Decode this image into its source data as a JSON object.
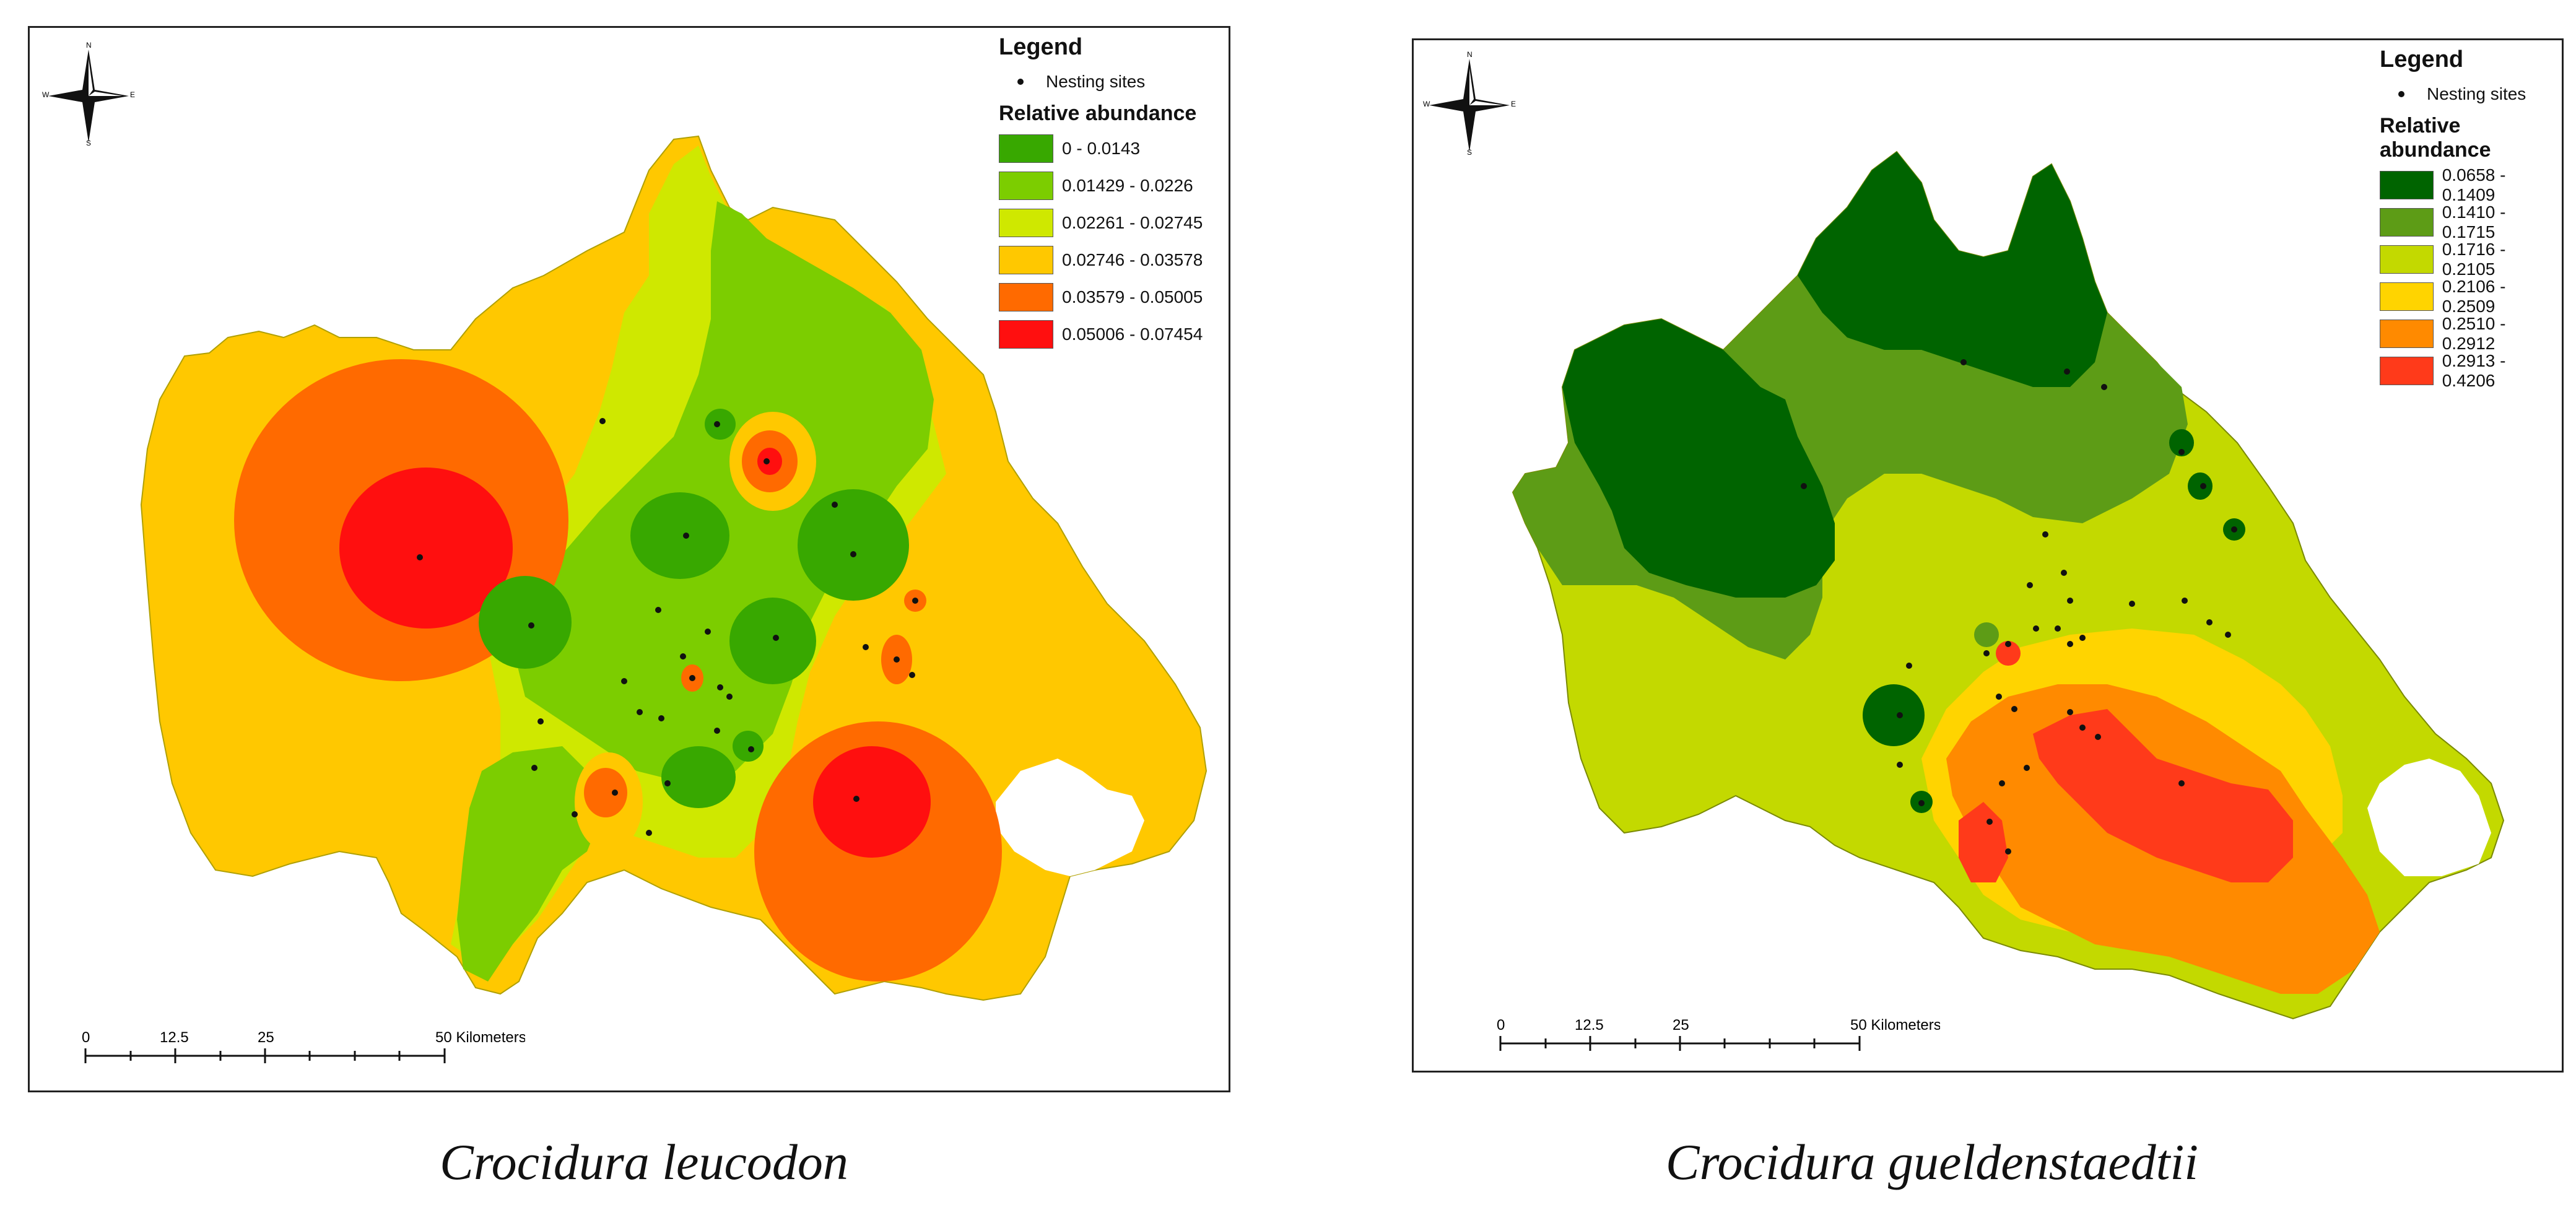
{
  "left_map": {
    "legend_title": "Legend",
    "nesting_label": "Nesting sites",
    "abundance_title": "Relative abundance",
    "classes": [
      {
        "range": "0 - 0.0143",
        "color": "#38a800"
      },
      {
        "range": "0.01429 - 0.0226",
        "color": "#7ccd00"
      },
      {
        "range": "0.02261 - 0.02745",
        "color": "#cfe800"
      },
      {
        "range": "0.02746 - 0.03578",
        "color": "#ffc800"
      },
      {
        "range": "0.03579 - 0.05005",
        "color": "#ff6a00"
      },
      {
        "range": "0.05006 - 0.07454",
        "color": "#ff0f0f"
      }
    ],
    "scale": {
      "ticks": [
        "0",
        "12.5",
        "25",
        "50 Kilometers"
      ]
    },
    "compass": {
      "n": "N",
      "s": "S",
      "e": "E",
      "w": "W"
    },
    "caption": "Crocidura leucodon"
  },
  "right_map": {
    "legend_title": "Legend",
    "nesting_label": "Nesting sites",
    "abundance_title": "Relative abundance",
    "classes": [
      {
        "range": "0.0658 - 0.1409",
        "color": "#006400"
      },
      {
        "range": "0.1410 - 0.1715",
        "color": "#5d9c16"
      },
      {
        "range": "0.1716 - 0.2105",
        "color": "#c3d900"
      },
      {
        "range": "0.2106 - 0.2509",
        "color": "#ffd400"
      },
      {
        "range": "0.2510 - 0.2912",
        "color": "#ff8a00"
      },
      {
        "range": "0.2913 - 0.4206",
        "color": "#ff3a1a"
      }
    ],
    "scale": {
      "ticks": [
        "0",
        "12.5",
        "25",
        "50 Kilometers"
      ]
    },
    "compass": {
      "n": "N",
      "s": "S",
      "e": "E",
      "w": "W"
    },
    "caption": "Crocidura gueldenstaedtii"
  }
}
